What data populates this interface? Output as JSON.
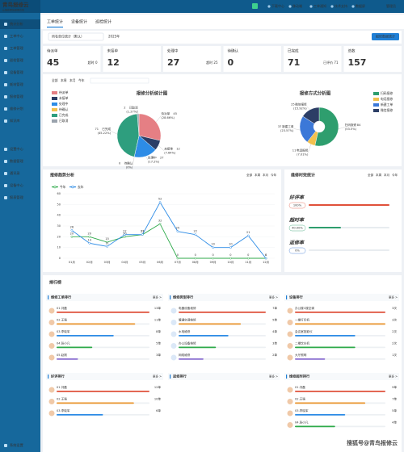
{
  "header": {
    "logo": "青鸟报修云",
    "logo_sub": "让报修更简单更高效",
    "nav": [
      "下载中心",
      "移动端",
      "工单通知",
      "技术支持",
      "数据屏"
    ],
    "user": "管理员"
  },
  "sidebar": {
    "items": [
      "统计分析",
      "工单中心",
      "工单管理",
      "巡检管理",
      "设备管理",
      "耗材管理",
      "报修管理",
      "维修计划",
      "知识库",
      "设置中心",
      "数据管理",
      "通讯录",
      "设备中心",
      "报表管理",
      "系统设置"
    ]
  },
  "tabs": [
    "工单统计",
    "设备统计",
    "巡检统计"
  ],
  "filters": {
    "unit": "所有单位统计（默认）",
    "year": "2025年",
    "export": "报修数据统计"
  },
  "kpis": [
    {
      "label": "待派单",
      "value": 45,
      "note": "超时 0"
    },
    {
      "label": "未接单",
      "value": 12
    },
    {
      "label": "处理中",
      "value": 27,
      "note": "超时 25"
    },
    {
      "label": "待确认",
      "value": 0
    },
    {
      "label": "已完成",
      "value": 71,
      "note": "已评价 71"
    },
    {
      "label": "总数",
      "value": 157
    }
  ],
  "periods": [
    "全部",
    "本周",
    "本月",
    "今年"
  ],
  "chart_data": [
    {
      "type": "pie",
      "title": "报修分析统计图",
      "categories": [
        "待派单",
        "未接单",
        "处理中",
        "待确认",
        "已完成",
        "已取消"
      ],
      "values": [
        45,
        12,
        27,
        0,
        71,
        2
      ],
      "percent_labels": [
        "(28.66%)",
        "(7.64%)",
        "(17.2%)",
        "(0%)",
        "(45.22%)",
        "(1.27%)"
      ],
      "colors": [
        "#e57f84",
        "#2c3e66",
        "#2d8ce6",
        "#f2c14e",
        "#2e9e7e",
        "#9aa3ad"
      ]
    },
    {
      "type": "pie",
      "title": "报修方式分析图",
      "categories": [
        "扫码报修",
        "电话报修",
        "新建工单",
        "微信报修"
      ],
      "values": [
        84,
        11,
        37,
        25
      ],
      "percent_labels": [
        "(53.5%)",
        "(7.01%)",
        "(23.57%)",
        "(15.92%)"
      ],
      "colors": [
        "#2e9e6e",
        "#f2c14e",
        "#3b78d8",
        "#2c3e66"
      ]
    },
    {
      "type": "line",
      "title": "报修趋势分析",
      "categories": [
        "01月",
        "02月",
        "03月",
        "04月",
        "05月",
        "06月",
        "07月",
        "08月",
        "09月",
        "10月",
        "11月",
        "12月"
      ],
      "series": [
        {
          "name": "今年",
          "color": "#2eaa4a",
          "values": [
            20,
            20,
            15,
            20,
            22,
            32,
            0,
            0,
            0,
            0,
            0,
            0
          ]
        },
        {
          "name": "去年",
          "color": "#2d8ce6",
          "values": [
            26,
            14,
            11,
            22,
            22,
            52,
            25,
            22,
            10,
            10,
            21,
            0
          ]
        }
      ],
      "ylim": [
        0,
        60
      ],
      "yticks": [
        0,
        10,
        20,
        30,
        40,
        50,
        60
      ],
      "grid": true
    }
  ],
  "timeliness": {
    "title": "维修时效统计",
    "items": [
      {
        "label": "好评率",
        "value": 100,
        "value_label": "100%",
        "color": "#e0513a"
      },
      {
        "label": "超时率",
        "value": 40,
        "value_label": "40.00%",
        "color": "#2e9e6e"
      },
      {
        "label": "返修率",
        "value": 0,
        "value_label": "0%",
        "color": "#2f6fd0"
      }
    ]
  },
  "ranking": {
    "title": "排行榜",
    "more": "更多 >",
    "boards": [
      {
        "title": "维修工单排行",
        "items": [
          {
            "name": "01.刘磊",
            "value": 13,
            "value_label": "13单"
          },
          {
            "name": "02.王强",
            "value": 11,
            "value_label": "11单"
          },
          {
            "name": "03.李晓军",
            "value": 8,
            "value_label": "8单"
          },
          {
            "name": "04.张小凡",
            "value": 5,
            "value_label": "5单"
          },
          {
            "name": "05.赵刚",
            "value": 3,
            "value_label": "3单"
          }
        ]
      },
      {
        "title": "维修类型排行",
        "items": [
          {
            "name": "电器设备维修",
            "value": 7,
            "value_label": "7单"
          },
          {
            "name": "暖通空调维修",
            "value": 5,
            "value_label": "5单"
          },
          {
            "name": "水电维修",
            "value": 4,
            "value_label": "4单"
          },
          {
            "name": "办公设备维修",
            "value": 3,
            "value_label": "3单"
          },
          {
            "name": "网络维修",
            "value": 2,
            "value_label": "2单"
          }
        ]
      },
      {
        "title": "设备排行",
        "items": [
          {
            "name": "办公楼1楼空调",
            "value": 3,
            "value_label": "3次"
          },
          {
            "name": "一楼打印机",
            "value": 3,
            "value_label": "3次"
          },
          {
            "name": "会议室投影仪",
            "value": 2,
            "value_label": "2次"
          },
          {
            "name": "二楼饮水机",
            "value": 2,
            "value_label": "2次"
          },
          {
            "name": "大厅照明",
            "value": 1,
            "value_label": "1次"
          }
        ]
      },
      {
        "title": "好评排行",
        "items": [
          {
            "name": "01.刘磊",
            "value": 12,
            "value_label": "12单"
          },
          {
            "name": "02.王强",
            "value": 10,
            "value_label": "10单"
          },
          {
            "name": "03.李晓军",
            "value": 6,
            "value_label": "6单"
          }
        ]
      },
      {
        "title": "返修排行",
        "items": []
      },
      {
        "title": "维修超时排行",
        "items": [
          {
            "name": "01.刘磊",
            "value": 9,
            "value_label": "9单"
          },
          {
            "name": "02.王强",
            "value": 7,
            "value_label": "7单"
          },
          {
            "name": "03.李晓军",
            "value": 5,
            "value_label": "5单"
          },
          {
            "name": "04.张小凡",
            "value": 4,
            "value_label": "4单"
          }
        ]
      }
    ]
  },
  "watermark": "搜狐号@青鸟报修云"
}
